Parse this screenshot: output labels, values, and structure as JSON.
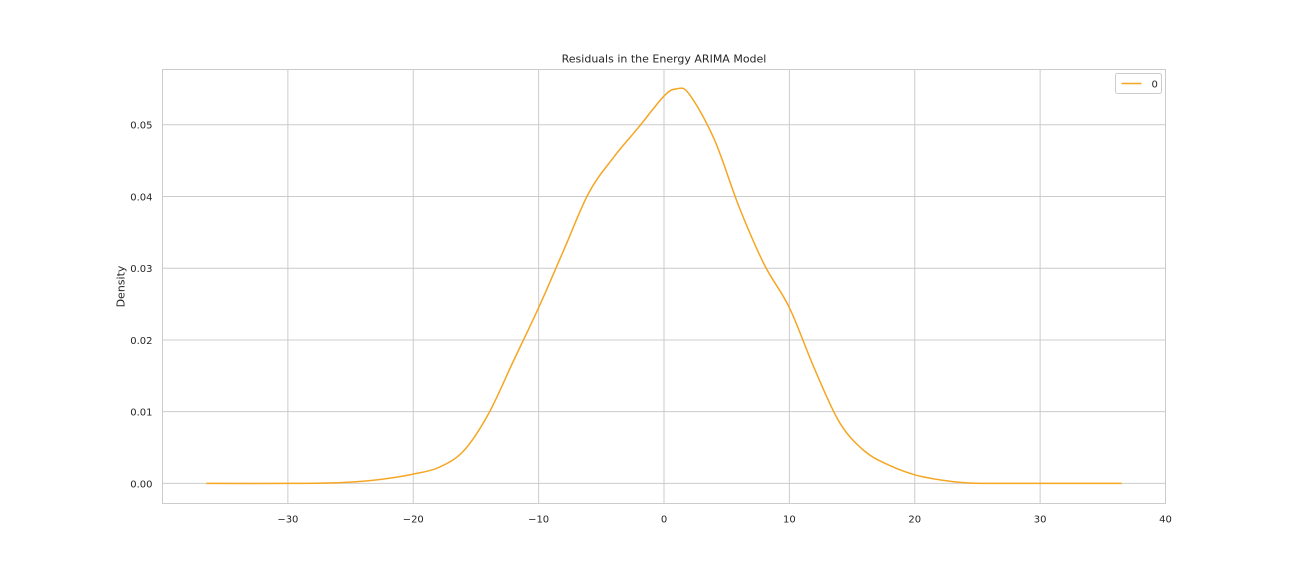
{
  "chart_data": {
    "type": "line",
    "title": "Residuals in the Energy ARIMA Model",
    "xlabel": "",
    "ylabel": "Density",
    "xlim": [
      -40,
      40
    ],
    "ylim": [
      -0.0028,
      0.0577
    ],
    "x_ticks": [
      -30,
      -20,
      -10,
      0,
      10,
      20,
      30,
      40
    ],
    "x_tick_labels": [
      "−30",
      "−20",
      "−10",
      "0",
      "10",
      "20",
      "30",
      "40"
    ],
    "y_ticks": [
      0.0,
      0.01,
      0.02,
      0.03,
      0.04,
      0.05
    ],
    "y_tick_labels": [
      "0.00",
      "0.01",
      "0.02",
      "0.03",
      "0.04",
      "0.05"
    ],
    "grid": true,
    "legend_position": "top-right",
    "series": [
      {
        "name": "0",
        "color": "#f5a623",
        "x": [
          -36.5,
          -30,
          -26,
          -24,
          -22,
          -20,
          -18,
          -16,
          -14,
          -12,
          -10,
          -8,
          -6,
          -4,
          -2,
          0,
          1,
          2,
          4,
          6,
          8,
          10,
          12,
          14,
          16,
          18,
          20,
          22,
          24,
          26,
          30,
          36.5
        ],
        "y": [
          0.0,
          0.0,
          0.0001,
          0.0003,
          0.0007,
          0.0013,
          0.0022,
          0.0045,
          0.0097,
          0.0171,
          0.0245,
          0.0325,
          0.0405,
          0.0455,
          0.0497,
          0.054,
          0.055,
          0.0543,
          0.048,
          0.0385,
          0.0305,
          0.0245,
          0.016,
          0.0085,
          0.0045,
          0.0025,
          0.0012,
          0.0005,
          0.0001,
          0.0,
          0.0,
          0.0
        ]
      }
    ]
  }
}
